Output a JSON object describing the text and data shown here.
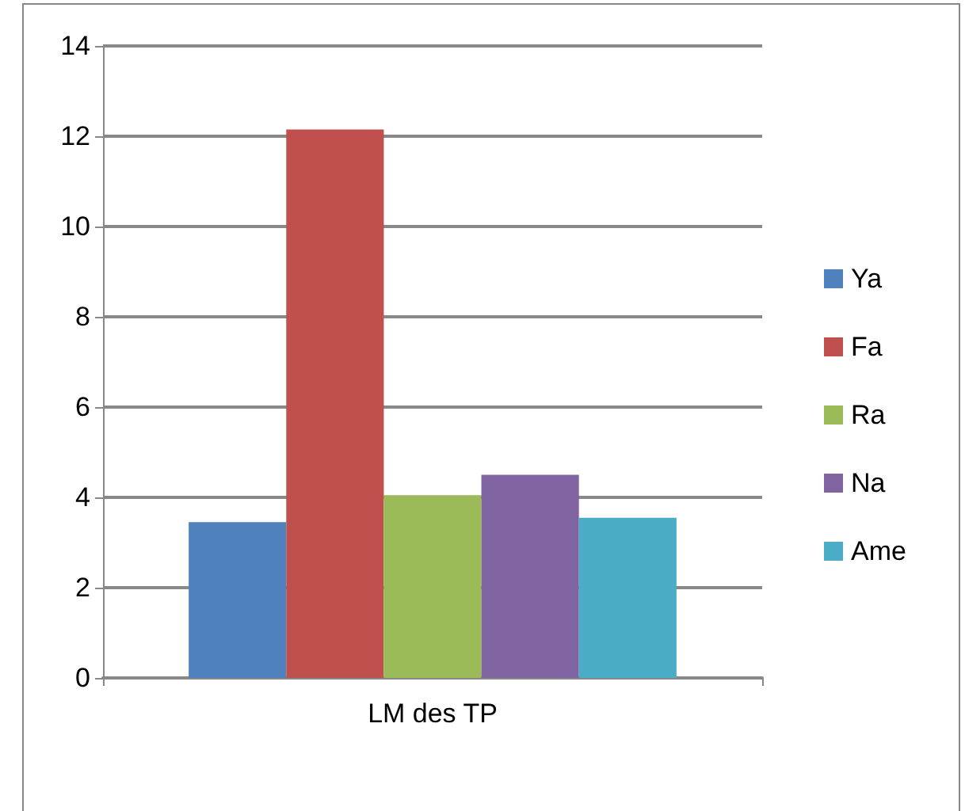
{
  "chart_data": {
    "type": "bar",
    "categories": [
      "LM des TP"
    ],
    "series": [
      {
        "name": "Ya",
        "color": "#4f81bd",
        "values": [
          3.45
        ]
      },
      {
        "name": "Fa",
        "color": "#c0504d",
        "values": [
          12.15
        ]
      },
      {
        "name": "Ra",
        "color": "#9bbb59",
        "values": [
          4.05
        ]
      },
      {
        "name": "Na",
        "color": "#8064a2",
        "values": [
          4.5
        ]
      },
      {
        "name": "Ame",
        "color": "#4bacc6",
        "values": [
          3.55
        ]
      }
    ],
    "ylim": [
      0,
      14
    ],
    "yticks": [
      0,
      2,
      4,
      6,
      8,
      10,
      12,
      14
    ],
    "grid": "y",
    "legend": "right"
  }
}
